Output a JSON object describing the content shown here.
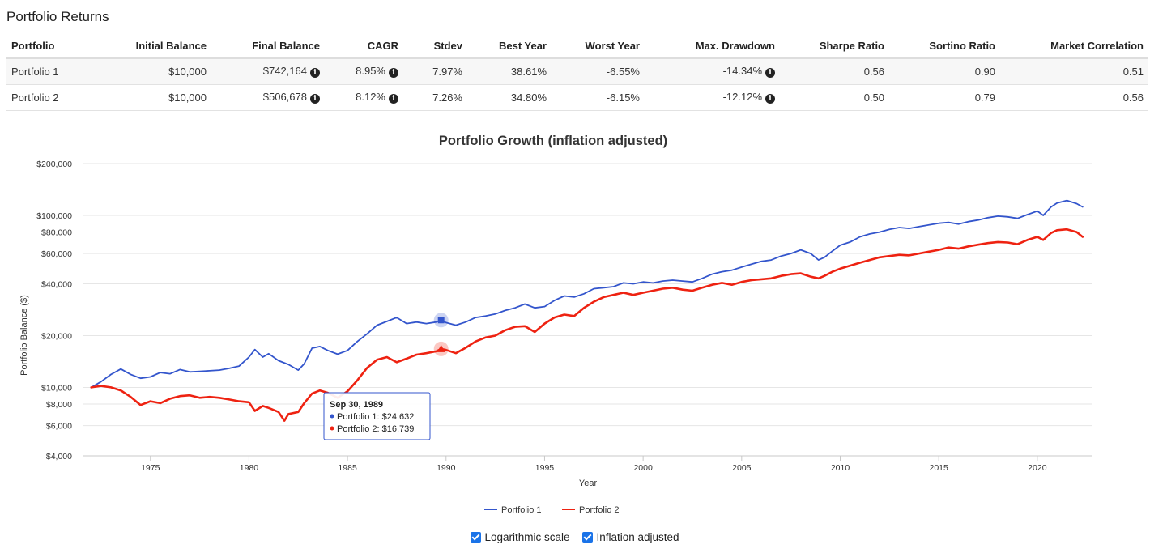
{
  "section_title": "Portfolio Returns",
  "table": {
    "columns": [
      "Portfolio",
      "Initial Balance",
      "Final Balance",
      "CAGR",
      "Stdev",
      "Best Year",
      "Worst Year",
      "Max. Drawdown",
      "Sharpe Ratio",
      "Sortino Ratio",
      "Market Correlation"
    ],
    "rows": [
      {
        "name": "Portfolio 1",
        "initial": "$10,000",
        "final": "$742,164",
        "cagr": "8.95%",
        "stdev": "7.97%",
        "best": "38.61%",
        "worst": "-6.55%",
        "drawdown": "-14.34%",
        "sharpe": "0.56",
        "sortino": "0.90",
        "corr": "0.51"
      },
      {
        "name": "Portfolio 2",
        "initial": "$10,000",
        "final": "$506,678",
        "cagr": "8.12%",
        "stdev": "7.26%",
        "best": "34.80%",
        "worst": "-6.15%",
        "drawdown": "-12.12%",
        "sharpe": "0.50",
        "sortino": "0.79",
        "corr": "0.56"
      }
    ],
    "info_icon": "info-circle-icon"
  },
  "chart_data": {
    "type": "line",
    "title": "Portfolio Growth (inflation adjusted)",
    "xlabel": "Year",
    "ylabel": "Portfolio Balance ($)",
    "yscale": "log",
    "ylim": [
      4000,
      200000
    ],
    "xlim": [
      1971.6,
      2022.8
    ],
    "yticks": [
      4000,
      6000,
      8000,
      10000,
      20000,
      40000,
      60000,
      80000,
      100000,
      200000
    ],
    "ytick_labels": [
      "$4,000",
      "$6,000",
      "$8,000",
      "$10,000",
      "$20,000",
      "$40,000",
      "$60,000",
      "$80,000",
      "$100,000",
      "$200,000"
    ],
    "xticks": [
      1975,
      1980,
      1985,
      1990,
      1995,
      2000,
      2005,
      2010,
      2015,
      2020
    ],
    "xtick_labels": [
      "1975",
      "1980",
      "1985",
      "1990",
      "1995",
      "2000",
      "2005",
      "2010",
      "2015",
      "2020"
    ],
    "grid": true,
    "legend_position": "bottom",
    "series": [
      {
        "name": "Portfolio 1",
        "color": "#3355cc",
        "points": [
          [
            1972.0,
            10000
          ],
          [
            1972.5,
            10800
          ],
          [
            1973.0,
            11900
          ],
          [
            1973.5,
            12800
          ],
          [
            1974.0,
            11900
          ],
          [
            1974.5,
            11300
          ],
          [
            1975.0,
            11500
          ],
          [
            1975.5,
            12200
          ],
          [
            1976.0,
            12000
          ],
          [
            1976.5,
            12700
          ],
          [
            1977.0,
            12300
          ],
          [
            1977.5,
            12400
          ],
          [
            1978.0,
            12500
          ],
          [
            1978.5,
            12600
          ],
          [
            1979.0,
            12900
          ],
          [
            1979.5,
            13300
          ],
          [
            1980.0,
            15000
          ],
          [
            1980.3,
            16600
          ],
          [
            1980.7,
            15000
          ],
          [
            1981.0,
            15700
          ],
          [
            1981.5,
            14300
          ],
          [
            1982.0,
            13600
          ],
          [
            1982.5,
            12600
          ],
          [
            1982.8,
            13700
          ],
          [
            1983.2,
            16900
          ],
          [
            1983.6,
            17300
          ],
          [
            1984.0,
            16400
          ],
          [
            1984.5,
            15600
          ],
          [
            1985.0,
            16400
          ],
          [
            1985.5,
            18500
          ],
          [
            1986.0,
            20500
          ],
          [
            1986.5,
            23000
          ],
          [
            1987.0,
            24200
          ],
          [
            1987.5,
            25500
          ],
          [
            1988.0,
            23500
          ],
          [
            1988.5,
            24000
          ],
          [
            1989.0,
            23500
          ],
          [
            1989.5,
            24000
          ],
          [
            1989.75,
            24632
          ],
          [
            1990.0,
            23800
          ],
          [
            1990.5,
            23000
          ],
          [
            1991.0,
            24000
          ],
          [
            1991.5,
            25500
          ],
          [
            1992.0,
            26000
          ],
          [
            1992.5,
            26700
          ],
          [
            1993.0,
            28000
          ],
          [
            1993.5,
            29000
          ],
          [
            1994.0,
            30500
          ],
          [
            1994.5,
            29000
          ],
          [
            1995.0,
            29500
          ],
          [
            1995.5,
            32000
          ],
          [
            1996.0,
            34000
          ],
          [
            1996.5,
            33500
          ],
          [
            1997.0,
            35000
          ],
          [
            1997.5,
            37500
          ],
          [
            1998.0,
            38000
          ],
          [
            1998.5,
            38500
          ],
          [
            1999.0,
            40500
          ],
          [
            1999.5,
            40000
          ],
          [
            2000.0,
            41000
          ],
          [
            2000.5,
            40500
          ],
          [
            2001.0,
            41500
          ],
          [
            2001.5,
            42000
          ],
          [
            2002.0,
            41500
          ],
          [
            2002.5,
            41000
          ],
          [
            2003.0,
            43000
          ],
          [
            2003.5,
            45500
          ],
          [
            2004.0,
            47000
          ],
          [
            2004.5,
            48000
          ],
          [
            2005.0,
            50000
          ],
          [
            2005.5,
            52000
          ],
          [
            2006.0,
            54000
          ],
          [
            2006.5,
            55000
          ],
          [
            2007.0,
            58000
          ],
          [
            2007.5,
            60000
          ],
          [
            2008.0,
            63000
          ],
          [
            2008.5,
            60000
          ],
          [
            2008.9,
            55000
          ],
          [
            2009.2,
            57000
          ],
          [
            2009.6,
            62000
          ],
          [
            2010.0,
            67000
          ],
          [
            2010.5,
            70000
          ],
          [
            2011.0,
            75000
          ],
          [
            2011.5,
            78000
          ],
          [
            2012.0,
            80000
          ],
          [
            2012.5,
            83000
          ],
          [
            2013.0,
            85000
          ],
          [
            2013.5,
            84000
          ],
          [
            2014.0,
            86000
          ],
          [
            2014.5,
            88000
          ],
          [
            2015.0,
            90000
          ],
          [
            2015.5,
            91000
          ],
          [
            2016.0,
            89000
          ],
          [
            2016.5,
            92000
          ],
          [
            2017.0,
            94000
          ],
          [
            2017.5,
            97000
          ],
          [
            2018.0,
            99000
          ],
          [
            2018.5,
            98000
          ],
          [
            2019.0,
            96000
          ],
          [
            2019.5,
            101000
          ],
          [
            2020.0,
            106000
          ],
          [
            2020.3,
            100000
          ],
          [
            2020.7,
            112000
          ],
          [
            2021.0,
            118000
          ],
          [
            2021.5,
            122000
          ],
          [
            2022.0,
            117000
          ],
          [
            2022.3,
            112000
          ]
        ]
      },
      {
        "name": "Portfolio 2",
        "color": "#ee2211",
        "points": [
          [
            1972.0,
            10000
          ],
          [
            1972.5,
            10200
          ],
          [
            1973.0,
            10000
          ],
          [
            1973.5,
            9600
          ],
          [
            1974.0,
            8800
          ],
          [
            1974.5,
            7900
          ],
          [
            1975.0,
            8300
          ],
          [
            1975.5,
            8100
          ],
          [
            1976.0,
            8600
          ],
          [
            1976.5,
            8900
          ],
          [
            1977.0,
            9000
          ],
          [
            1977.5,
            8700
          ],
          [
            1978.0,
            8800
          ],
          [
            1978.5,
            8700
          ],
          [
            1979.0,
            8500
          ],
          [
            1979.5,
            8300
          ],
          [
            1980.0,
            8200
          ],
          [
            1980.3,
            7300
          ],
          [
            1980.7,
            7800
          ],
          [
            1981.0,
            7600
          ],
          [
            1981.5,
            7200
          ],
          [
            1981.8,
            6400
          ],
          [
            1982.0,
            7000
          ],
          [
            1982.5,
            7200
          ],
          [
            1982.8,
            8100
          ],
          [
            1983.2,
            9200
          ],
          [
            1983.6,
            9600
          ],
          [
            1984.0,
            9300
          ],
          [
            1984.5,
            8700
          ],
          [
            1985.0,
            9500
          ],
          [
            1985.5,
            11000
          ],
          [
            1986.0,
            13000
          ],
          [
            1986.5,
            14500
          ],
          [
            1987.0,
            15000
          ],
          [
            1987.5,
            14000
          ],
          [
            1988.0,
            14700
          ],
          [
            1988.5,
            15500
          ],
          [
            1989.0,
            15800
          ],
          [
            1989.5,
            16200
          ],
          [
            1989.75,
            16739
          ],
          [
            1990.0,
            16500
          ],
          [
            1990.5,
            15800
          ],
          [
            1991.0,
            17000
          ],
          [
            1991.5,
            18500
          ],
          [
            1992.0,
            19500
          ],
          [
            1992.5,
            20000
          ],
          [
            1993.0,
            21500
          ],
          [
            1993.5,
            22500
          ],
          [
            1994.0,
            22700
          ],
          [
            1994.5,
            21000
          ],
          [
            1995.0,
            23500
          ],
          [
            1995.5,
            25500
          ],
          [
            1996.0,
            26500
          ],
          [
            1996.5,
            26000
          ],
          [
            1997.0,
            29000
          ],
          [
            1997.5,
            31500
          ],
          [
            1998.0,
            33500
          ],
          [
            1998.5,
            34500
          ],
          [
            1999.0,
            35500
          ],
          [
            1999.5,
            34500
          ],
          [
            2000.0,
            35500
          ],
          [
            2000.5,
            36500
          ],
          [
            2001.0,
            37500
          ],
          [
            2001.5,
            38000
          ],
          [
            2002.0,
            37000
          ],
          [
            2002.5,
            36500
          ],
          [
            2003.0,
            38000
          ],
          [
            2003.5,
            39500
          ],
          [
            2004.0,
            40500
          ],
          [
            2004.5,
            39500
          ],
          [
            2005.0,
            41000
          ],
          [
            2005.5,
            42000
          ],
          [
            2006.0,
            42500
          ],
          [
            2006.5,
            43000
          ],
          [
            2007.0,
            44500
          ],
          [
            2007.5,
            45500
          ],
          [
            2008.0,
            46000
          ],
          [
            2008.5,
            44000
          ],
          [
            2008.9,
            43000
          ],
          [
            2009.2,
            44500
          ],
          [
            2009.6,
            47000
          ],
          [
            2010.0,
            49000
          ],
          [
            2010.5,
            51000
          ],
          [
            2011.0,
            53000
          ],
          [
            2011.5,
            55000
          ],
          [
            2012.0,
            57000
          ],
          [
            2012.5,
            58000
          ],
          [
            2013.0,
            59000
          ],
          [
            2013.5,
            58500
          ],
          [
            2014.0,
            60000
          ],
          [
            2014.5,
            61500
          ],
          [
            2015.0,
            63000
          ],
          [
            2015.5,
            65000
          ],
          [
            2016.0,
            64000
          ],
          [
            2016.5,
            66000
          ],
          [
            2017.0,
            67500
          ],
          [
            2017.5,
            69000
          ],
          [
            2018.0,
            70000
          ],
          [
            2018.5,
            69500
          ],
          [
            2019.0,
            68000
          ],
          [
            2019.5,
            72000
          ],
          [
            2020.0,
            75000
          ],
          [
            2020.3,
            72000
          ],
          [
            2020.7,
            79000
          ],
          [
            2021.0,
            82000
          ],
          [
            2021.5,
            83000
          ],
          [
            2022.0,
            80000
          ],
          [
            2022.3,
            75000
          ]
        ]
      }
    ],
    "tooltip": {
      "date": "Sep 30, 1989",
      "x": 1989.75,
      "lines": [
        "Portfolio 1: $24,632",
        "Portfolio 2: $16,739"
      ]
    }
  },
  "options": {
    "log_label": "Logarithmic scale",
    "inflation_label": "Inflation adjusted",
    "log_checked": true,
    "inflation_checked": true,
    "accent": "#1a73e8"
  }
}
